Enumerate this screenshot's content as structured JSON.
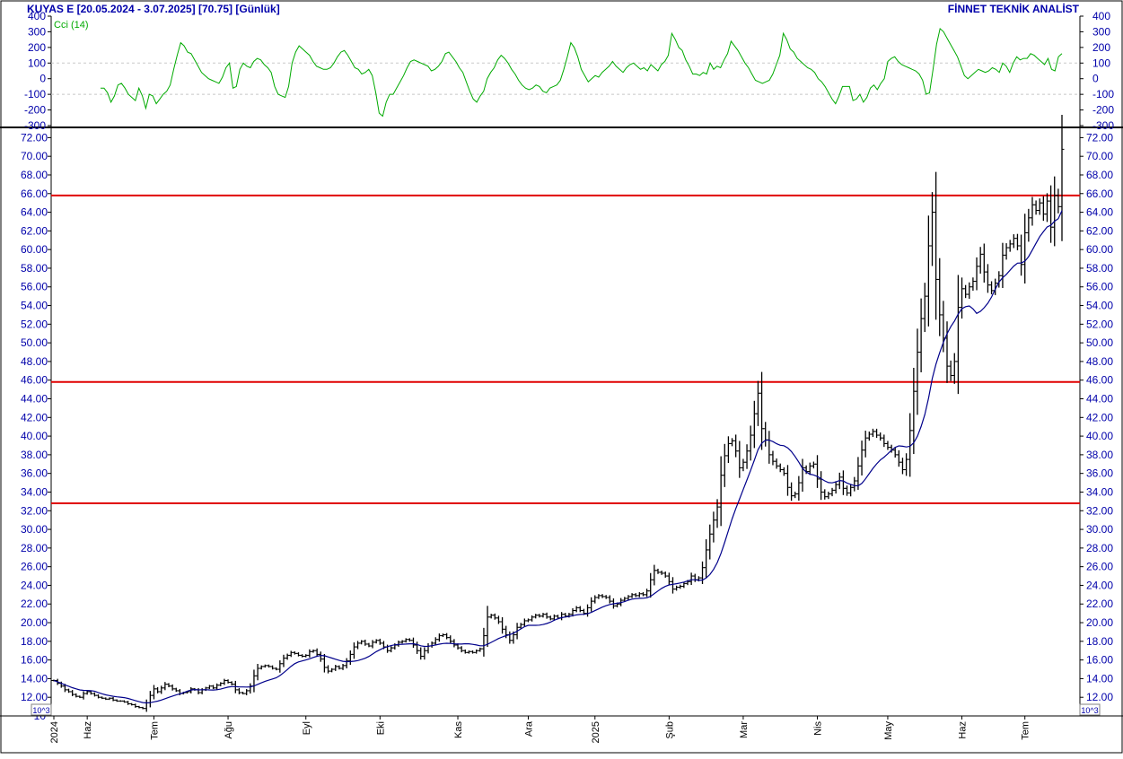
{
  "header": {
    "symbol_info": "KUYAS E  [20.05.2024 - 3.07.2025]  [70.75]  [Günlük]",
    "brand": "FİNNET TEKNİK ANALİST"
  },
  "colors": {
    "title": "#0000aa",
    "axis_text": "#0000aa",
    "cci_line": "#00aa00",
    "price_bars": "#000000",
    "moving_average": "#00008b",
    "support_resistance": "#e00000",
    "grid": "#c8c8c8",
    "frame": "#000000"
  },
  "chart_data": [
    {
      "type": "line",
      "id": "cci",
      "title": "Cci (14)",
      "ylim": [
        -300,
        400
      ],
      "y_ticks": [
        400,
        300,
        200,
        100,
        0,
        -100,
        -200,
        -300
      ],
      "y_tick_labels": [
        "400",
        "300",
        "200",
        "100",
        "0",
        "-100",
        "-200",
        "-300"
      ],
      "gridlines": [
        100,
        -100
      ],
      "series": [
        {
          "values": [
            -60,
            -60,
            -90,
            -150,
            -110,
            -40,
            -30,
            -60,
            -100,
            -120,
            -140,
            -60,
            -110,
            -190,
            -100,
            -110,
            -160,
            -130,
            -100,
            -80,
            -40,
            60,
            150,
            230,
            210,
            170,
            160,
            120,
            80,
            40,
            20,
            0,
            -10,
            -20,
            -30,
            10,
            70,
            100,
            -60,
            -50,
            60,
            100,
            80,
            70,
            110,
            130,
            120,
            90,
            70,
            40,
            -50,
            -100,
            -110,
            -120,
            -50,
            100,
            170,
            210,
            190,
            170,
            150,
            110,
            80,
            70,
            60,
            60,
            70,
            100,
            140,
            170,
            180,
            150,
            110,
            70,
            60,
            30,
            40,
            60,
            20,
            -90,
            -220,
            -240,
            -150,
            -100,
            -100,
            -60,
            -20,
            20,
            70,
            110,
            120,
            110,
            100,
            90,
            80,
            50,
            60,
            80,
            110,
            160,
            170,
            140,
            110,
            70,
            40,
            -20,
            -80,
            -130,
            -150,
            -110,
            -80,
            0,
            40,
            70,
            120,
            150,
            130,
            100,
            60,
            30,
            -10,
            -40,
            -60,
            -70,
            -60,
            -40,
            -50,
            -80,
            -90,
            -60,
            -50,
            -40,
            -10,
            60,
            140,
            230,
            200,
            140,
            60,
            20,
            -20,
            0,
            20,
            10,
            40,
            60,
            80,
            110,
            80,
            60,
            40,
            70,
            90,
            100,
            80,
            60,
            70,
            50,
            90,
            70,
            50,
            90,
            110,
            150,
            290,
            250,
            200,
            180,
            120,
            80,
            30,
            30,
            20,
            40,
            30,
            100,
            60,
            80,
            70,
            120,
            160,
            240,
            210,
            180,
            140,
            100,
            70,
            30,
            -10,
            -20,
            -30,
            -20,
            -10,
            30,
            90,
            150,
            290,
            250,
            190,
            170,
            130,
            110,
            90,
            70,
            60,
            40,
            0,
            -20,
            -50,
            -90,
            -130,
            -160,
            -110,
            -50,
            -50,
            -50,
            -140,
            -130,
            -100,
            -150,
            -120,
            -60,
            -40,
            -70,
            -30,
            0,
            110,
            130,
            140,
            110,
            90,
            80,
            70,
            60,
            50,
            30,
            -10,
            -100,
            -90,
            60,
            220,
            320,
            300,
            260,
            220,
            180,
            140,
            80,
            20,
            0,
            20,
            40,
            60,
            50,
            40,
            50,
            70,
            60,
            40,
            100,
            80,
            40,
            100,
            140,
            120,
            130,
            130,
            160,
            150,
            130,
            110,
            90,
            130,
            60,
            50,
            140,
            160
          ]
        }
      ]
    },
    {
      "type": "ohlc",
      "id": "price",
      "ylim": [
        10,
        73
      ],
      "y_ticks": [
        10,
        12,
        14,
        16,
        18,
        20,
        22,
        24,
        26,
        28,
        30,
        32,
        34,
        36,
        38,
        40,
        42,
        44,
        46,
        48,
        50,
        52,
        54,
        56,
        58,
        60,
        62,
        64,
        66,
        68,
        70,
        72
      ],
      "y_tick_labels": [
        "10",
        "12.00",
        "14.00",
        "16.00",
        "18.00",
        "20.00",
        "22.00",
        "24.00",
        "26.00",
        "28.00",
        "30.00",
        "32.00",
        "34.00",
        "36.00",
        "38.00",
        "40.00",
        "42.00",
        "44.00",
        "46.00",
        "48.00",
        "50.00",
        "52.00",
        "54.00",
        "56.00",
        "58.00",
        "60.00",
        "62.00",
        "64.00",
        "66.00",
        "68.00",
        "70.00",
        "72.00"
      ],
      "scale_note": "10^3",
      "horizontal_levels": [
        65.8,
        45.8,
        32.8
      ],
      "x_labels": [
        "2024",
        "Haz",
        "Tem",
        "Ağu",
        "Eyl",
        "Eki",
        "Kas",
        "Ara",
        "2025",
        "Şub",
        "Mar",
        "Nis",
        "May",
        "Haz",
        "Tem"
      ],
      "x_label_bar_index": [
        0,
        9,
        27,
        47,
        68,
        88,
        109,
        128,
        146,
        166,
        186,
        206,
        225,
        245,
        262
      ],
      "close": [
        13.8,
        13.5,
        13.2,
        12.8,
        12.6,
        12.3,
        12.1,
        12.0,
        12.4,
        12.6,
        12.4,
        12.2,
        12.0,
        11.9,
        11.8,
        11.9,
        11.7,
        11.6,
        11.6,
        11.5,
        11.3,
        11.2,
        11.0,
        10.9,
        10.8,
        11.4,
        12.2,
        12.9,
        12.6,
        13.0,
        13.4,
        13.2,
        12.9,
        12.7,
        12.4,
        12.5,
        12.6,
        12.9,
        12.8,
        12.5,
        12.8,
        13.0,
        13.2,
        13.0,
        13.3,
        13.5,
        13.8,
        13.6,
        13.4,
        12.8,
        12.5,
        12.4,
        12.7,
        13.2,
        14.3,
        15.1,
        15.3,
        15.4,
        15.3,
        15.1,
        15.0,
        15.6,
        16.2,
        16.5,
        16.8,
        16.7,
        16.5,
        16.4,
        16.5,
        16.9,
        17.0,
        16.6,
        16.1,
        15.2,
        14.8,
        15.0,
        15.3,
        15.1,
        15.4,
        15.9,
        16.6,
        17.4,
        17.8,
        18.0,
        17.7,
        17.5,
        17.9,
        18.1,
        17.8,
        17.4,
        17.0,
        17.3,
        17.6,
        17.9,
        18.0,
        18.2,
        18.1,
        17.6,
        17.0,
        16.4,
        17.0,
        17.5,
        17.8,
        18.2,
        18.6,
        18.7,
        18.4,
        18.0,
        17.6,
        17.3,
        17.0,
        16.8,
        16.9,
        16.8,
        17.0,
        17.2,
        18.6,
        20.6,
        20.8,
        20.5,
        20.1,
        19.3,
        18.7,
        18.1,
        18.7,
        19.5,
        19.8,
        20.2,
        20.3,
        20.6,
        20.8,
        20.7,
        20.9,
        20.6,
        20.4,
        20.7,
        20.5,
        20.9,
        20.7,
        20.9,
        21.3,
        21.6,
        21.3,
        21.0,
        21.6,
        22.3,
        22.7,
        22.9,
        22.8,
        22.7,
        22.3,
        21.8,
        22.0,
        22.4,
        22.6,
        22.8,
        23.0,
        22.9,
        23.1,
        23.0,
        23.4,
        24.6,
        25.6,
        25.4,
        25.3,
        25.0,
        24.4,
        23.6,
        23.8,
        23.9,
        24.2,
        24.4,
        25.0,
        24.6,
        24.8,
        25.9,
        27.8,
        29.5,
        31.0,
        32.4,
        35.8,
        37.9,
        39.2,
        39.5,
        38.4,
        36.6,
        37.2,
        38.4,
        40.1,
        42.4,
        44.6,
        40.8,
        39.6,
        38.0,
        37.3,
        36.8,
        36.4,
        36.0,
        34.5,
        33.6,
        33.8,
        35.0,
        36.6,
        36.2,
        36.8,
        37.0,
        35.4,
        34.0,
        33.5,
        33.8,
        34.2,
        34.8,
        35.6,
        34.4,
        33.9,
        34.5,
        35.2,
        36.8,
        38.5,
        39.8,
        40.2,
        40.5,
        40.1,
        39.8,
        39.2,
        38.8,
        38.5,
        38.0,
        37.2,
        36.4,
        37.5,
        40.6,
        44.8,
        49.0,
        52.6,
        55.0,
        60.4,
        64.0,
        56.8,
        53.0,
        50.5,
        47.5,
        46.5,
        48.0,
        53.8,
        55.8,
        55.2,
        56.0,
        56.6,
        58.2,
        59.5,
        57.6,
        56.2,
        55.6,
        56.4,
        57.2,
        59.4,
        60.2,
        60.6,
        61.2,
        60.4,
        58.4,
        61.8,
        63.4,
        64.8,
        64.2,
        65.0,
        63.8,
        65.2,
        62.4,
        65.8,
        64.6,
        70.75
      ]
    }
  ]
}
